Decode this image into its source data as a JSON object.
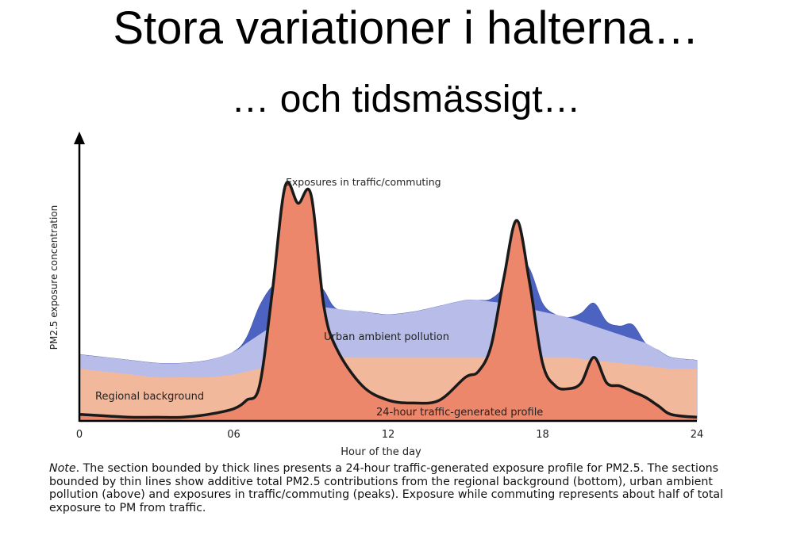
{
  "page": {
    "title": "Stora variationer i halterna…",
    "subtitle": "… och tidsmässigt…"
  },
  "chart_data": {
    "type": "area",
    "xlabel": "Hour of the day",
    "ylabel": "PM2.5 exposure concentration",
    "xlim": [
      0,
      24
    ],
    "x_ticks": [
      "0",
      "06",
      "12",
      "18",
      "24"
    ],
    "x_tick_values": [
      0,
      6,
      12,
      18,
      24
    ],
    "ylim": [
      0,
      100
    ],
    "y_ticks_shown": false,
    "grid": false,
    "legend": "none",
    "x": [
      0,
      1,
      2,
      3,
      4,
      5,
      6,
      6.5,
      7,
      7.5,
      8,
      8.5,
      9,
      9.5,
      10,
      11,
      12,
      13,
      14,
      15,
      15.5,
      16,
      16.5,
      17,
      17.5,
      18,
      18.5,
      19,
      19.5,
      20,
      20.5,
      21,
      21.5,
      22,
      22.5,
      23,
      24
    ],
    "series": [
      {
        "name": "Regional background",
        "color": "#f2b89c",
        "values": [
          18,
          17,
          16,
          15,
          15,
          15,
          16,
          17,
          18,
          19,
          20,
          20.5,
          21,
          21.5,
          22,
          22,
          22,
          22,
          22,
          22,
          22,
          22,
          22,
          22,
          22,
          22,
          22,
          22,
          21.5,
          21,
          20.5,
          20,
          19.5,
          19,
          18.5,
          18,
          18
        ]
      },
      {
        "name": "Urban ambient pollution",
        "color": "#b7bde8",
        "values": [
          5,
          5,
          5,
          5,
          5,
          6,
          8,
          10,
          12,
          14,
          16,
          17,
          18,
          18,
          17,
          16,
          15,
          16,
          18,
          20,
          20,
          19.5,
          19,
          18,
          17,
          16,
          15,
          14,
          13,
          12,
          11,
          10,
          9,
          8,
          6,
          4,
          3
        ]
      },
      {
        "name": "Exposures in traffic/commuting",
        "color": "#4d63c2",
        "values": [
          0,
          0,
          0,
          0,
          0,
          0,
          0,
          2,
          10,
          14,
          14,
          10,
          12,
          6,
          0,
          0,
          0,
          0,
          0,
          0,
          0,
          1,
          6,
          18,
          14,
          3,
          0,
          0,
          3,
          8,
          3,
          3,
          5,
          0,
          0,
          0,
          0
        ]
      }
    ],
    "profile": {
      "name": "24-hour traffic-generated profile",
      "color": "#ec876b",
      "values": [
        2,
        1.5,
        1,
        1,
        1,
        2,
        4,
        7,
        12,
        45,
        82,
        76,
        79,
        40,
        25,
        12,
        7,
        6,
        7,
        15,
        17,
        26,
        50,
        70,
        48,
        20,
        12,
        11,
        13,
        22,
        13,
        12,
        10,
        8,
        5,
        2,
        1
      ]
    },
    "annotations": {
      "traffic": "Exposures in traffic/commuting",
      "urban": "Urban ambient pollution",
      "regional": "Regional background",
      "profile": "24-hour traffic-generated profile"
    }
  },
  "note": {
    "lead": "Note",
    "text": ". The section bounded by thick lines presents a 24-hour traffic-generated exposure profile for PM2.5. The sections bounded by thin lines show additive total PM2.5 contributions from the regional background (bottom), urban ambient pollution (above) and exposures in traffic/commuting (peaks). Exposure while commuting represents about half of total exposure to PM from traffic."
  }
}
